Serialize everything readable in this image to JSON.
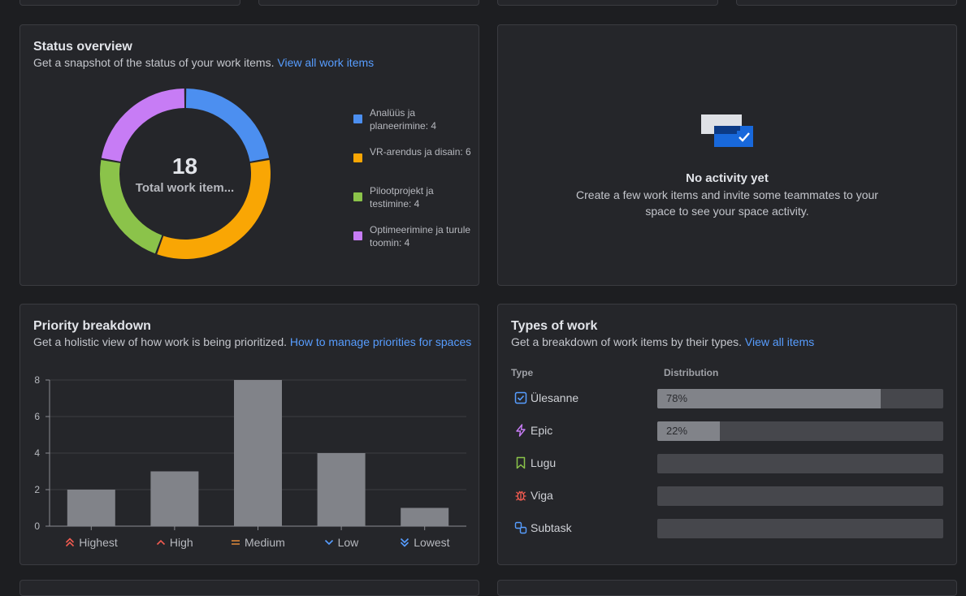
{
  "status_overview": {
    "title": "Status overview",
    "subtitle": "Get a snapshot of the status of your work items.",
    "link": "View all work items",
    "total": "18",
    "total_label": "Total work item...",
    "segments": [
      {
        "label": "Analüüs ja planeerimine: 4",
        "value": 4,
        "color": "#4c8ff0"
      },
      {
        "label": "VR-arendus ja disain: 6",
        "value": 6,
        "color": "#f9a604"
      },
      {
        "label": "Pilootprojekt ja testimine: 4",
        "value": 4,
        "color": "#8bc34a"
      },
      {
        "label": "Optimeerimine ja turule toomin: 4",
        "value": 4,
        "color": "#c77cf5"
      }
    ]
  },
  "activity": {
    "title": "No activity yet",
    "description": "Create a few work items and invite some teammates to your space to see your space activity."
  },
  "priority": {
    "title": "Priority breakdown",
    "subtitle": "Get a holistic view of how work is being prioritized.",
    "link": "How to manage priorities for spaces"
  },
  "chart_data": {
    "type": "bar",
    "categories": [
      "Highest",
      "High",
      "Medium",
      "Low",
      "Lowest"
    ],
    "values": [
      2,
      3,
      8,
      4,
      1
    ],
    "yticks": [
      "0",
      "2",
      "4",
      "6",
      "8"
    ],
    "ylim": [
      0,
      8
    ],
    "grid": true,
    "bar_color": "#818389",
    "priority_colors": [
      "#f15b50",
      "#f15b50",
      "#e2893b",
      "#579dff",
      "#579dff"
    ]
  },
  "types_of_work": {
    "title": "Types of work",
    "subtitle": "Get a breakdown of work items by their types.",
    "link": "View all items",
    "col_type": "Type",
    "col_distribution": "Distribution",
    "rows": [
      {
        "name": "Ülesanne",
        "percent": 78,
        "percent_label": "78%",
        "icon": "task-icon",
        "color": "#579dff"
      },
      {
        "name": "Epic",
        "percent": 22,
        "percent_label": "22%",
        "icon": "epic-icon",
        "color": "#c77cf5"
      },
      {
        "name": "Lugu",
        "percent": 0,
        "percent_label": "",
        "icon": "story-icon",
        "color": "#8bc34a"
      },
      {
        "name": "Viga",
        "percent": 0,
        "percent_label": "",
        "icon": "bug-icon",
        "color": "#f15b50"
      },
      {
        "name": "Subtask",
        "percent": 0,
        "percent_label": "",
        "icon": "subtask-icon",
        "color": "#579dff"
      }
    ]
  }
}
